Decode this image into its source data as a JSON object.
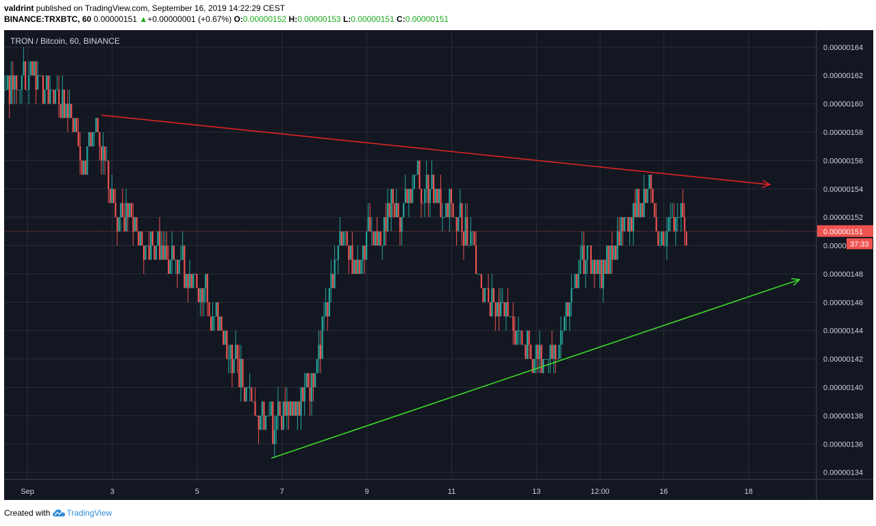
{
  "header": {
    "user": "valdrint",
    "published_text": " published on TradingView.com, September 16, 2019 14:22:29 CEST",
    "symbol": "BINANCE:TRXBTC, 60",
    "last": "0.00000151",
    "change_arrow": "▲",
    "change": "+0.00000001 (+0.67%)",
    "o_label": "O:",
    "o_value": "0.00000152",
    "h_label": "H:",
    "h_value": "0.00000153",
    "l_label": "L:",
    "l_value": "0.00000151",
    "c_label": "C:",
    "c_value": "0.00000151"
  },
  "footer": {
    "created_with": "Created with",
    "brand": "TradingView"
  },
  "colors": {
    "background": "#131722",
    "up": "#26a69a",
    "down": "#ef5350",
    "resistance": "#e02424",
    "support": "#3ddc2a",
    "price_line": "#ef5350"
  },
  "chart_data": {
    "type": "candlestick",
    "title": "TRON / Bitcoin, 60, BINANCE",
    "ylim": [
      1.335e-06,
      1.652e-06
    ],
    "y_ticks": [
      "0.00000164",
      "0.00000162",
      "0.00000160",
      "0.00000158",
      "0.00000156",
      "0.00000154",
      "0.00000152",
      "0.00000150",
      "0.00000148",
      "0.00000146",
      "0.00000144",
      "0.00000142",
      "0.00000140",
      "0.00000138",
      "0.00000136",
      "0.00000134"
    ],
    "x_ticks": [
      {
        "label": "Sep",
        "day": 1
      },
      {
        "label": "3",
        "day": 3
      },
      {
        "label": "5",
        "day": 5
      },
      {
        "label": "7",
        "day": 7
      },
      {
        "label": "9",
        "day": 9
      },
      {
        "label": "11",
        "day": 11
      },
      {
        "label": "13",
        "day": 13
      },
      {
        "label": "12:00",
        "day": 14.5
      },
      {
        "label": "16",
        "day": 16
      },
      {
        "label": "18",
        "day": 18
      }
    ],
    "xlim_day": [
      0.45,
      19.6
    ],
    "close_path": [
      {
        "day": 0.45,
        "price": 1.61e-06
      },
      {
        "day": 1.0,
        "price": 1.62e-06
      },
      {
        "day": 1.5,
        "price": 1.61e-06
      },
      {
        "day": 2.0,
        "price": 1.6e-06
      },
      {
        "day": 2.3,
        "price": 1.56e-06
      },
      {
        "day": 2.7,
        "price": 1.58e-06
      },
      {
        "day": 3.0,
        "price": 1.53e-06
      },
      {
        "day": 3.4,
        "price": 1.52e-06
      },
      {
        "day": 3.8,
        "price": 1.5e-06
      },
      {
        "day": 4.3,
        "price": 1.49e-06
      },
      {
        "day": 4.8,
        "price": 1.48e-06
      },
      {
        "day": 5.2,
        "price": 1.46e-06
      },
      {
        "day": 5.6,
        "price": 1.44e-06
      },
      {
        "day": 5.9,
        "price": 1.41e-06
      },
      {
        "day": 6.2,
        "price": 1.4e-06
      },
      {
        "day": 6.5,
        "price": 1.38e-06
      },
      {
        "day": 6.75,
        "price": 1.37e-06
      },
      {
        "day": 7.2,
        "price": 1.38e-06
      },
      {
        "day": 7.6,
        "price": 1.39e-06
      },
      {
        "day": 7.9,
        "price": 1.43e-06
      },
      {
        "day": 8.2,
        "price": 1.48e-06
      },
      {
        "day": 8.4,
        "price": 1.51e-06
      },
      {
        "day": 8.7,
        "price": 1.48e-06
      },
      {
        "day": 9.0,
        "price": 1.51e-06
      },
      {
        "day": 9.3,
        "price": 1.5e-06
      },
      {
        "day": 9.6,
        "price": 1.53e-06
      },
      {
        "day": 9.9,
        "price": 1.52e-06
      },
      {
        "day": 10.2,
        "price": 1.55e-06
      },
      {
        "day": 10.5,
        "price": 1.54e-06
      },
      {
        "day": 10.8,
        "price": 1.53e-06
      },
      {
        "day": 11.2,
        "price": 1.52e-06
      },
      {
        "day": 11.5,
        "price": 1.5e-06
      },
      {
        "day": 11.8,
        "price": 1.47e-06
      },
      {
        "day": 12.1,
        "price": 1.46e-06
      },
      {
        "day": 12.5,
        "price": 1.44e-06
      },
      {
        "day": 12.8,
        "price": 1.43e-06
      },
      {
        "day": 13.2,
        "price": 1.42e-06
      },
      {
        "day": 13.6,
        "price": 1.43e-06
      },
      {
        "day": 13.8,
        "price": 1.47e-06
      },
      {
        "day": 14.1,
        "price": 1.49e-06
      },
      {
        "day": 14.5,
        "price": 1.48e-06
      },
      {
        "day": 14.8,
        "price": 1.5e-06
      },
      {
        "day": 15.1,
        "price": 1.52e-06
      },
      {
        "day": 15.4,
        "price": 1.53e-06
      },
      {
        "day": 15.7,
        "price": 1.54e-06
      },
      {
        "day": 15.9,
        "price": 1.5e-06
      },
      {
        "day": 16.1,
        "price": 1.51e-06
      },
      {
        "day": 16.3,
        "price": 1.52e-06
      },
      {
        "day": 16.55,
        "price": 1.51e-06
      }
    ],
    "trendlines": [
      {
        "name": "resistance",
        "from": {
          "day": 2.75,
          "price": 1.592e-06
        },
        "to": {
          "day": 18.5,
          "price": 1.543e-06
        },
        "color": "#e02424"
      },
      {
        "name": "support",
        "from": {
          "day": 6.75,
          "price": 1.35e-06
        },
        "to": {
          "day": 19.2,
          "price": 1.476e-06
        },
        "color": "#3ddc2a"
      }
    ],
    "current_price": 1.51e-06,
    "current_price_label": "0.00000151",
    "countdown": "37:33",
    "grid": true,
    "legend": "none"
  }
}
